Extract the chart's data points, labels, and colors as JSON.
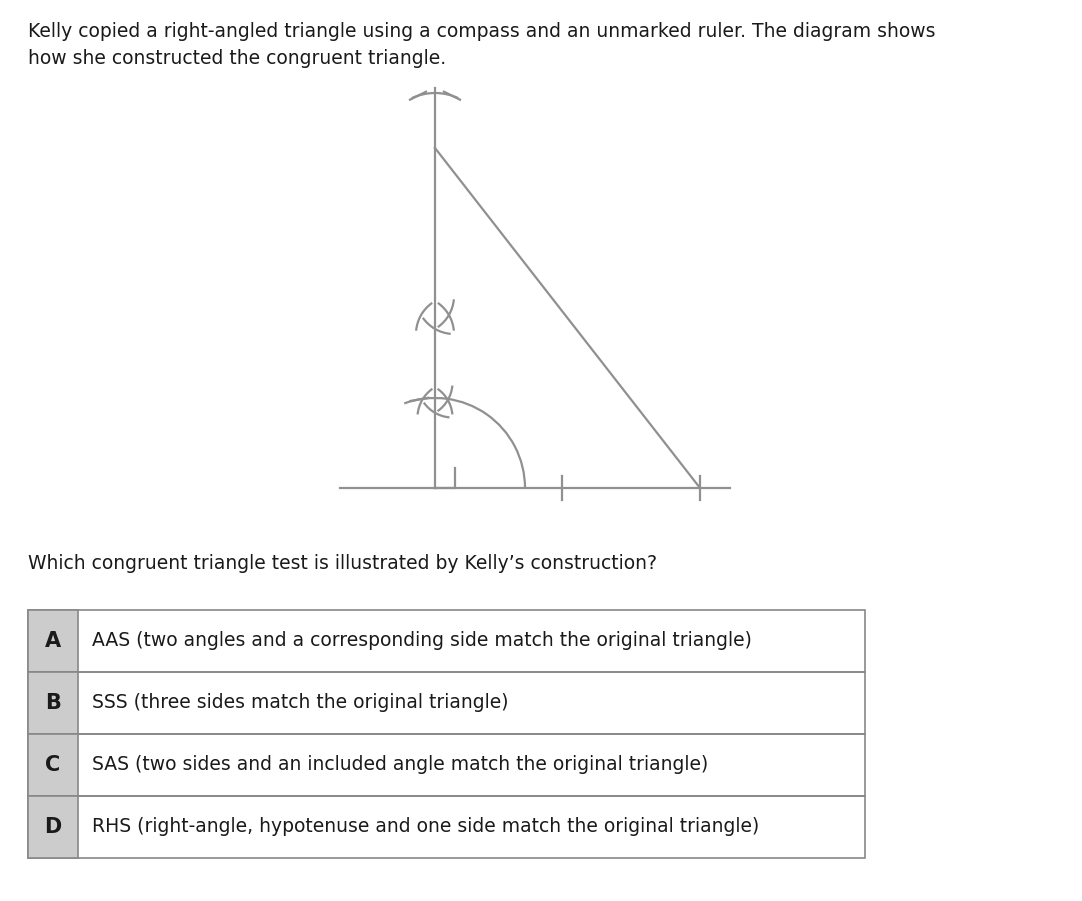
{
  "title_text": "Kelly copied a right-angled triangle using a compass and an unmarked ruler. The diagram shows\nhow she constructed the congruent triangle.",
  "question_text": "Which congruent triangle test is illustrated by Kelly’s construction?",
  "options": [
    {
      "label": "A",
      "text": "AAS (two angles and a corresponding side match the original triangle)"
    },
    {
      "label": "B",
      "text": "SSS (three sides match the original triangle)"
    },
    {
      "label": "C",
      "text": "SAS (two sides and an included angle match the original triangle)"
    },
    {
      "label": "D",
      "text": "RHS (right-angle, hypotenuse and one side match the original triangle)"
    }
  ],
  "line_color": "#909090",
  "bg_color": "#ffffff",
  "text_color": "#1a1a1a",
  "table_border_color": "#888888",
  "label_bg_color": "#cccccc"
}
